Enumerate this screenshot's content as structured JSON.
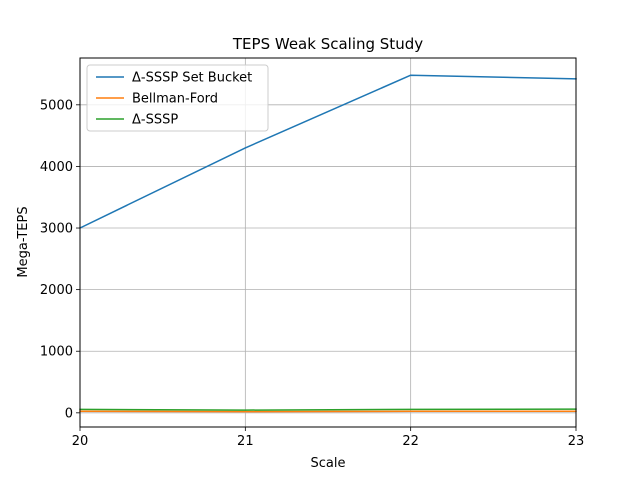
{
  "chart_data": {
    "type": "line",
    "title": "TEPS Weak Scaling Study",
    "xlabel": "Scale",
    "ylabel": "Mega-TEPS",
    "x": [
      20,
      21,
      22,
      23
    ],
    "xlim": [
      20,
      23
    ],
    "ylim": [
      -230,
      5760
    ],
    "xticks": [
      "20",
      "21",
      "22",
      "23"
    ],
    "yticks": [
      0,
      1000,
      2000,
      3000,
      4000,
      5000
    ],
    "grid": true,
    "legend_position": "top-left",
    "series": [
      {
        "name": "Δ-SSSP Set Bucket",
        "color": "#1f77b4",
        "values": [
          3000,
          4300,
          5480,
          5420
        ]
      },
      {
        "name": "Bellman-Ford",
        "color": "#ff7f0e",
        "values": [
          25,
          20,
          25,
          25
        ]
      },
      {
        "name": "Δ-SSSP",
        "color": "#2ca02c",
        "values": [
          55,
          45,
          55,
          60
        ]
      }
    ]
  }
}
